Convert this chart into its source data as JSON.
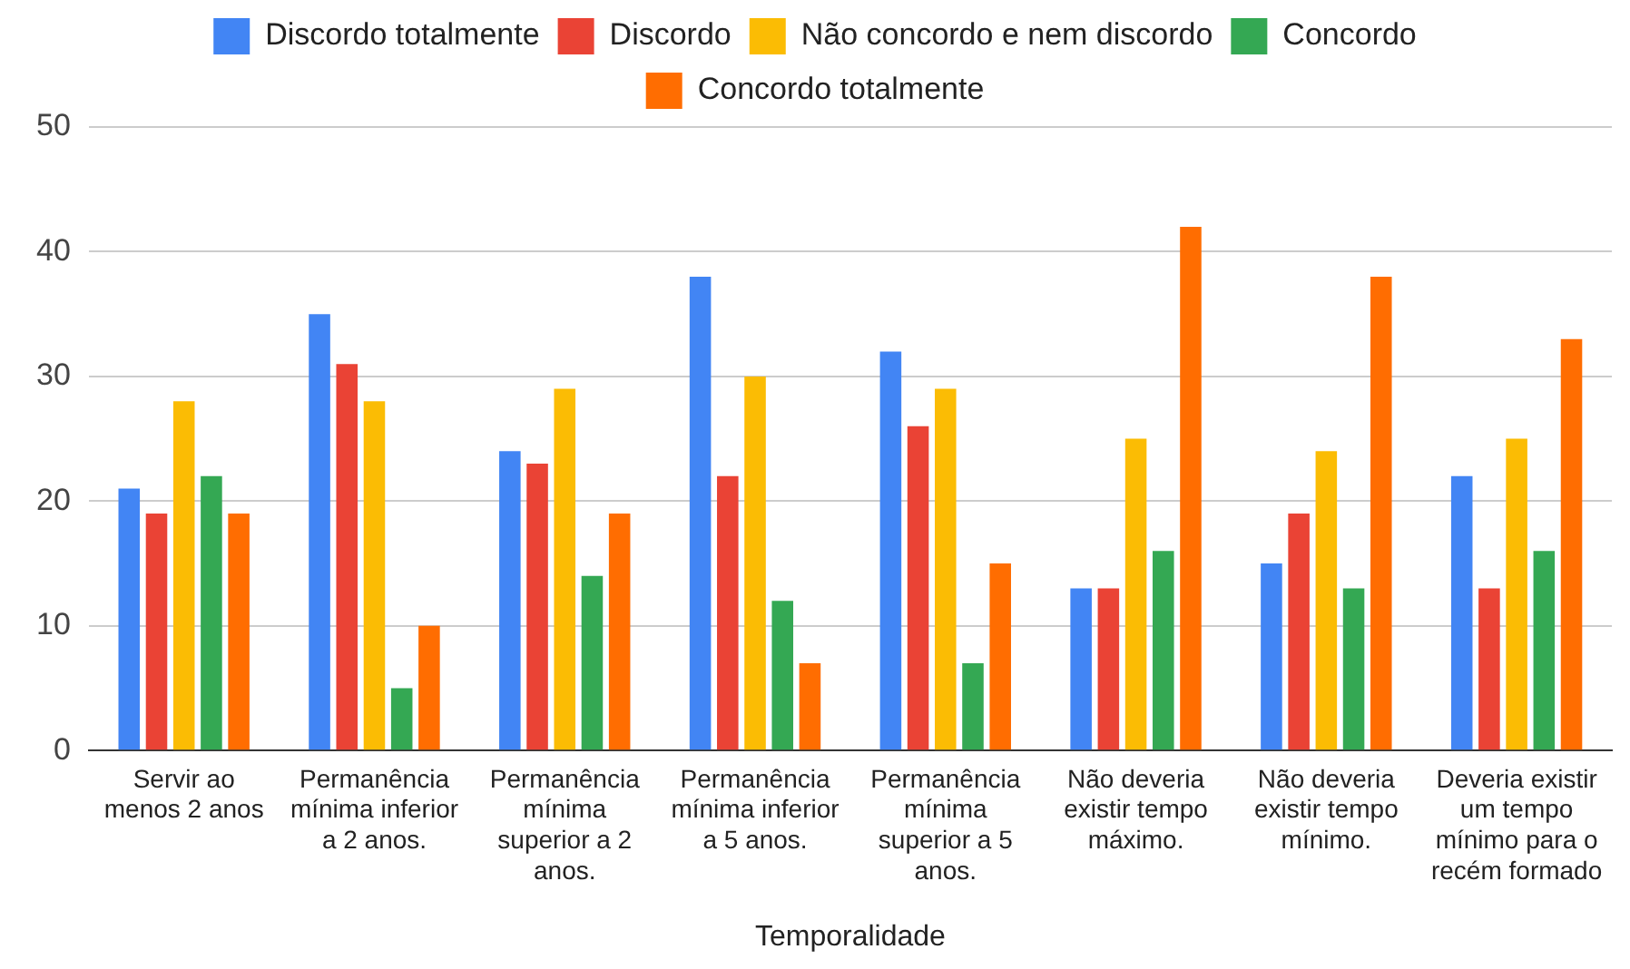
{
  "chart_data": {
    "type": "bar",
    "xlabel": "Temporalidade",
    "categories": [
      "Servir ao menos 2 anos",
      "Permanência mínima inferior a 2 anos.",
      "Permanência mínima superior a 2 anos.",
      "Permanência mínima inferior a 5 anos.",
      "Permanência mínima superior a 5 anos.",
      "Não deveria existir tempo máximo.",
      "Não deveria existir tempo mínimo.",
      "Deveria existir um tempo mínimo para o recém formado"
    ],
    "series": [
      {
        "name": "Discordo totalmente",
        "color": "#4285f4",
        "values": [
          21,
          35,
          24,
          38,
          32,
          13,
          15,
          22
        ]
      },
      {
        "name": "Discordo",
        "color": "#ea4335",
        "values": [
          19,
          31,
          23,
          22,
          26,
          13,
          19,
          13
        ]
      },
      {
        "name": "Não concordo e nem discordo",
        "color": "#fbbc04",
        "values": [
          28,
          28,
          29,
          30,
          29,
          25,
          24,
          25
        ]
      },
      {
        "name": "Concordo",
        "color": "#34a853",
        "values": [
          22,
          5,
          14,
          12,
          7,
          16,
          13,
          16
        ]
      },
      {
        "name": "Concordo totalmente",
        "color": "#ff6d01",
        "values": [
          19,
          10,
          19,
          7,
          15,
          42,
          38,
          33
        ]
      }
    ],
    "ylim": [
      0,
      50
    ],
    "yticks": [
      0,
      10,
      20,
      30,
      40,
      50
    ],
    "grid": "y",
    "legend": "top"
  }
}
